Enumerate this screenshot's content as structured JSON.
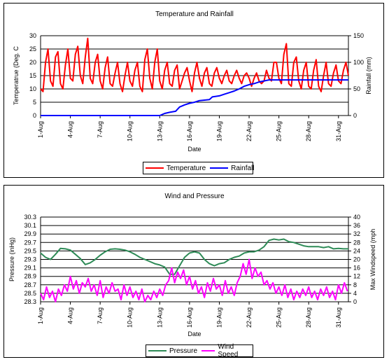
{
  "chart_data": [
    {
      "type": "line",
      "title": "Temperature and Rainfall",
      "xlabel": "Date",
      "ylabel": "Temperatrue (Deg. C",
      "y2label": "Rainfall (mm)",
      "ylim": [
        0,
        30
      ],
      "y2lim": [
        0,
        150
      ],
      "yticks": [
        "0",
        "5",
        "10",
        "15",
        "20",
        "25",
        "30"
      ],
      "y2ticks": [
        "0",
        "50",
        "100",
        "150"
      ],
      "categories": [
        "1-Aug",
        "4-Aug",
        "7-Aug",
        "10-Aug",
        "13-Aug",
        "16-Aug",
        "19-Aug",
        "22-Aug",
        "25-Aug",
        "28-Aug",
        "31-Aug"
      ],
      "x_day_range": [
        1,
        32
      ],
      "grid": true,
      "legend": "bottom",
      "series": [
        {
          "name": "Temperature",
          "color": "#ff0000",
          "axis": "left",
          "x": [
            1,
            1.25,
            1.5,
            1.75,
            2,
            2.25,
            2.5,
            2.75,
            3,
            3.25,
            3.5,
            3.75,
            4,
            4.25,
            4.5,
            4.75,
            5,
            5.25,
            5.5,
            5.75,
            6,
            6.25,
            6.5,
            6.75,
            7,
            7.25,
            7.5,
            7.75,
            8,
            8.25,
            8.5,
            8.75,
            9,
            9.25,
            9.5,
            9.75,
            10,
            10.25,
            10.5,
            10.75,
            11,
            11.25,
            11.5,
            11.75,
            12,
            12.25,
            12.5,
            12.75,
            13,
            13.25,
            13.5,
            13.75,
            14,
            14.25,
            14.5,
            14.75,
            15,
            15.25,
            15.5,
            15.75,
            16,
            16.25,
            16.5,
            16.75,
            17,
            17.25,
            17.5,
            17.75,
            18,
            18.25,
            18.5,
            18.75,
            19,
            19.25,
            19.5,
            19.75,
            20,
            20.25,
            20.5,
            20.75,
            21,
            21.25,
            21.5,
            21.75,
            22,
            22.25,
            22.5,
            22.75,
            23,
            23.25,
            23.5,
            23.75,
            24,
            24.25,
            24.5,
            24.75,
            25,
            25.25,
            25.5,
            25.75,
            26,
            26.25,
            26.5,
            26.75,
            27,
            27.25,
            27.5,
            27.75,
            28,
            28.25,
            28.5,
            28.75,
            29,
            29.25,
            29.5,
            29.75,
            30,
            30.25,
            30.5,
            30.75,
            31,
            31.25,
            31.5,
            31.75,
            32
          ],
          "values": [
            10,
            9,
            20,
            25,
            13,
            11,
            22,
            24,
            12,
            10,
            19,
            25,
            14,
            13,
            23,
            26,
            15,
            12,
            22,
            29,
            14,
            12,
            20,
            23,
            13,
            10,
            18,
            22,
            12,
            11,
            16,
            20,
            12,
            9,
            15,
            20,
            13,
            11,
            17,
            20,
            11,
            9,
            21,
            25,
            14,
            10,
            20,
            25,
            13,
            10,
            17,
            20,
            12,
            11,
            17,
            19,
            10,
            13,
            16,
            18,
            13,
            9,
            16,
            20,
            14,
            11,
            16,
            18,
            12,
            11,
            16,
            18,
            14,
            12,
            15,
            17,
            13,
            12,
            15,
            17,
            14,
            12,
            15,
            16,
            14,
            11,
            14,
            16,
            13,
            12,
            13,
            17,
            14,
            13,
            20,
            20,
            14,
            12,
            23,
            27,
            12,
            11,
            20,
            22,
            13,
            10,
            17,
            20,
            11,
            10,
            17,
            21,
            11,
            9,
            15,
            20,
            12,
            11,
            16,
            19,
            13,
            12,
            17,
            20,
            15
          ]
        },
        {
          "name": "Rainfall",
          "color": "#0000ff",
          "axis": "right",
          "x": [
            1,
            13,
            13.5,
            14,
            14.6,
            15,
            15.5,
            16,
            16.5,
            17,
            17.5,
            18,
            18.3,
            19,
            19.5,
            20,
            20.5,
            21,
            21.5,
            22,
            22.5,
            23,
            23.5,
            24,
            32
          ],
          "values": [
            0,
            0,
            4,
            6,
            8,
            16,
            20,
            23,
            25,
            28,
            29,
            30,
            35,
            37,
            40,
            43,
            46,
            50,
            55,
            58,
            60,
            63,
            65,
            67,
            67
          ]
        }
      ]
    },
    {
      "type": "line",
      "title": "Wind and Pressure",
      "xlabel": "Date",
      "ylabel": "Pressure (inHg)",
      "y2label": "Max Windspeed (mph",
      "ylim": [
        28.3,
        30.3
      ],
      "y2lim": [
        0,
        40
      ],
      "yticks": [
        "28.3",
        "28.5",
        "28.7",
        "28.9",
        "29.1",
        "29.3",
        "29.5",
        "29.7",
        "29.9",
        "30.1",
        "30.3"
      ],
      "y2ticks": [
        "0",
        "4",
        "8",
        "12",
        "16",
        "20",
        "24",
        "28",
        "32",
        "36",
        "40"
      ],
      "categories": [
        "1-Aug",
        "4-Aug",
        "7-Aug",
        "10-Aug",
        "13-Aug",
        "16-Aug",
        "19-Aug",
        "22-Aug",
        "25-Aug",
        "28-Aug",
        "31-Aug"
      ],
      "x_day_range": [
        1,
        32
      ],
      "grid": true,
      "legend": "bottom",
      "series": [
        {
          "name": "Pressure",
          "color": "#2e8b57",
          "axis": "left",
          "x": [
            1,
            1.5,
            2,
            2.5,
            3,
            3.5,
            4,
            4.5,
            5,
            5.5,
            6,
            6.5,
            7,
            7.5,
            8,
            8.5,
            9,
            9.5,
            10,
            10.5,
            11,
            11.5,
            12,
            12.5,
            13,
            13.5,
            14,
            14.5,
            15,
            15.5,
            16,
            16.5,
            17,
            17.5,
            18,
            18.5,
            19,
            19.5,
            20,
            20.5,
            21,
            21.5,
            22,
            22.5,
            23,
            23.5,
            24,
            24.5,
            25,
            25.5,
            26,
            26.5,
            27,
            27.5,
            28,
            28.5,
            29,
            29.5,
            30,
            30.5,
            31,
            31.5,
            32
          ],
          "values": [
            29.45,
            29.35,
            29.3,
            29.42,
            29.56,
            29.55,
            29.52,
            29.42,
            29.32,
            29.18,
            29.22,
            29.3,
            29.4,
            29.48,
            29.54,
            29.55,
            29.54,
            29.52,
            29.48,
            29.42,
            29.35,
            29.3,
            29.25,
            29.2,
            29.17,
            29.12,
            28.95,
            28.95,
            29.15,
            29.35,
            29.45,
            29.48,
            29.45,
            29.3,
            29.2,
            29.15,
            29.2,
            29.22,
            29.3,
            29.35,
            29.38,
            29.45,
            29.48,
            29.48,
            29.52,
            29.6,
            29.75,
            29.78,
            29.76,
            29.78,
            29.72,
            29.7,
            29.66,
            29.62,
            29.6,
            29.6,
            29.6,
            29.58,
            29.6,
            29.55,
            29.56,
            29.55,
            29.55
          ]
        },
        {
          "name": "Wind Speed",
          "color": "#ff00ff",
          "axis": "right",
          "x": [
            1,
            1.3,
            1.6,
            1.9,
            2.2,
            2.5,
            2.8,
            3.1,
            3.4,
            3.7,
            4,
            4.3,
            4.6,
            4.9,
            5.2,
            5.5,
            5.8,
            6.1,
            6.4,
            6.7,
            7,
            7.3,
            7.6,
            7.9,
            8.2,
            8.5,
            8.8,
            9.1,
            9.4,
            9.7,
            10,
            10.3,
            10.6,
            10.9,
            11.2,
            11.5,
            11.8,
            12.1,
            12.4,
            12.7,
            13,
            13.3,
            13.6,
            13.9,
            14.2,
            14.5,
            14.8,
            15.1,
            15.4,
            15.7,
            16,
            16.3,
            16.6,
            16.9,
            17.2,
            17.5,
            17.8,
            18.1,
            18.4,
            18.7,
            19,
            19.3,
            19.6,
            19.9,
            20.2,
            20.5,
            20.8,
            21.1,
            21.4,
            21.7,
            22,
            22.3,
            22.6,
            22.9,
            23.2,
            23.5,
            23.8,
            24.1,
            24.4,
            24.7,
            25,
            25.3,
            25.6,
            25.9,
            26.2,
            26.5,
            26.8,
            27.1,
            27.4,
            27.7,
            28,
            28.3,
            28.6,
            28.9,
            29.2,
            29.5,
            29.8,
            30.1,
            30.4,
            30.7,
            31,
            31.3,
            31.6,
            31.9
          ],
          "values": [
            4,
            1,
            7,
            2,
            5,
            0,
            6,
            3,
            8,
            5,
            12,
            6,
            10,
            4,
            9,
            7,
            11,
            5,
            8,
            3,
            10,
            2,
            7,
            4,
            9,
            5,
            6,
            1,
            8,
            3,
            7,
            2,
            5,
            1,
            6,
            0,
            3,
            1,
            5,
            2,
            6,
            3,
            8,
            10,
            16,
            9,
            14,
            11,
            15,
            8,
            12,
            6,
            10,
            4,
            7,
            2,
            9,
            5,
            11,
            6,
            8,
            3,
            10,
            4,
            7,
            3,
            9,
            12,
            18,
            13,
            20,
            11,
            16,
            12,
            14,
            8,
            10,
            6,
            9,
            4,
            7,
            3,
            8,
            2,
            6,
            1,
            5,
            2,
            6,
            3,
            7,
            2,
            5,
            1,
            6,
            3,
            7,
            2,
            5,
            1,
            8,
            4,
            9,
            5
          ]
        }
      ]
    }
  ]
}
